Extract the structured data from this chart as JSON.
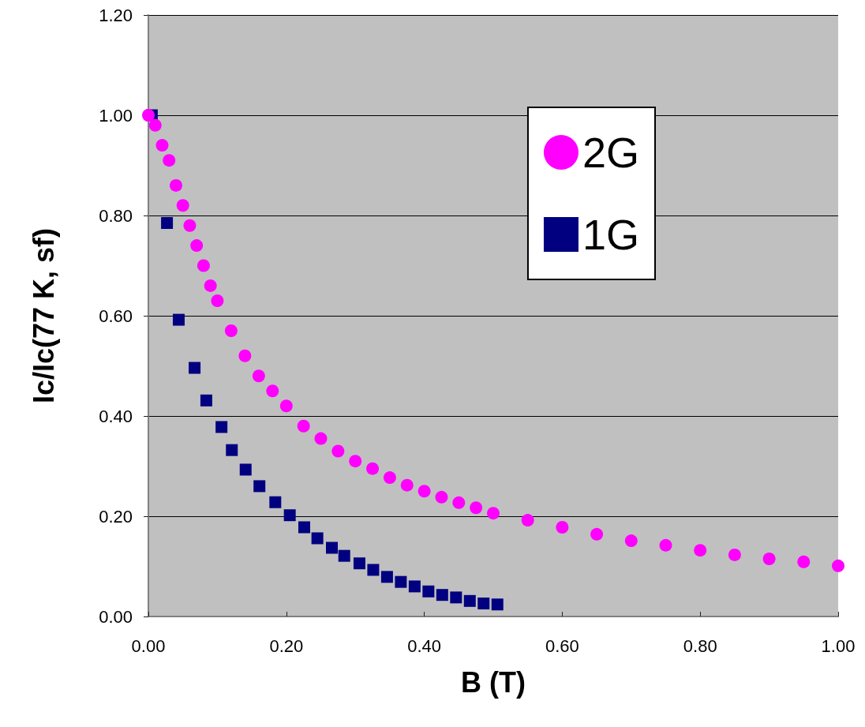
{
  "chart_data": {
    "type": "scatter",
    "xlabel": "B (T)",
    "ylabel": "Ic/Ic(77 K, sf)",
    "xlim": [
      0,
      1
    ],
    "xticks": [
      {
        "value": 0,
        "label": "0.00"
      },
      {
        "value": 0.2,
        "label": "0.20"
      },
      {
        "value": 0.4,
        "label": "0.40"
      },
      {
        "value": 0.6,
        "label": "0.60"
      },
      {
        "value": 0.8,
        "label": "0.80"
      },
      {
        "value": 1,
        "label": "1.00"
      }
    ],
    "ylim": [
      0,
      1.2
    ],
    "yticks": [
      {
        "value": 0,
        "label": "0.00"
      },
      {
        "value": 0.2,
        "label": "0.20"
      },
      {
        "value": 0.4,
        "label": "0.40"
      },
      {
        "value": 0.6,
        "label": "0.60"
      },
      {
        "value": 0.8,
        "label": "0.80"
      },
      {
        "value": 1,
        "label": "1.00"
      },
      {
        "value": 1.2,
        "label": "1.20"
      }
    ],
    "grid": "y",
    "legend": "top right",
    "series": [
      {
        "name": "2G",
        "color": "#ff00ff",
        "marker": "circle",
        "x": [
          0,
          0.01,
          0.02,
          0.03,
          0.04,
          0.05,
          0.06,
          0.07,
          0.08,
          0.09,
          0.1,
          0.12,
          0.14,
          0.16,
          0.18,
          0.2,
          0.225,
          0.25,
          0.275,
          0.3,
          0.325,
          0.35,
          0.375,
          0.4,
          0.425,
          0.45,
          0.475,
          0.5,
          0.55,
          0.6,
          0.65,
          0.7,
          0.75,
          0.8,
          0.85,
          0.9,
          0.95,
          1
        ],
        "values": [
          1,
          0.98,
          0.94,
          0.91,
          0.86,
          0.82,
          0.78,
          0.74,
          0.7,
          0.66,
          0.63,
          0.57,
          0.52,
          0.48,
          0.45,
          0.42,
          0.38,
          0.355,
          0.33,
          0.31,
          0.295,
          0.277,
          0.262,
          0.25,
          0.238,
          0.227,
          0.217,
          0.206,
          0.192,
          0.178,
          0.164,
          0.151,
          0.142,
          0.132,
          0.123,
          0.115,
          0.109,
          0.101
        ]
      },
      {
        "name": "1G",
        "color": "#000080",
        "marker": "square",
        "x": [
          0.005,
          0.027,
          0.044,
          0.067,
          0.084,
          0.106,
          0.121,
          0.141,
          0.161,
          0.184,
          0.205,
          0.226,
          0.245,
          0.266,
          0.284,
          0.306,
          0.326,
          0.346,
          0.366,
          0.386,
          0.406,
          0.426,
          0.446,
          0.466,
          0.486,
          0.506
        ],
        "values": [
          1,
          0.785,
          0.592,
          0.496,
          0.431,
          0.378,
          0.332,
          0.293,
          0.26,
          0.228,
          0.202,
          0.178,
          0.156,
          0.137,
          0.121,
          0.106,
          0.093,
          0.079,
          0.069,
          0.06,
          0.05,
          0.043,
          0.038,
          0.031,
          0.026,
          0.024
        ]
      }
    ]
  }
}
